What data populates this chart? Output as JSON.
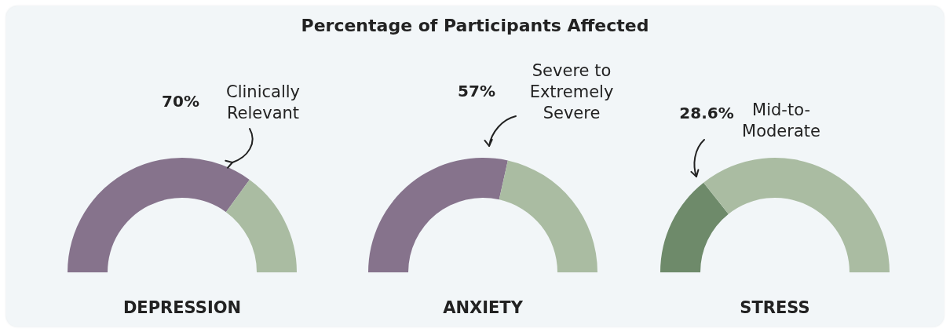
{
  "chart_data": [
    {
      "type": "donut",
      "categories": [
        "Clinically Relevant",
        null
      ],
      "values": [
        70,
        30
      ],
      "colors": [
        "#86738c",
        "#aabca2"
      ],
      "value_labels": [
        "70%",
        null
      ],
      "xlabel": "DEPRESSION"
    },
    {
      "type": "donut",
      "title": "Percentage of Participants Affected",
      "categories": [
        "Severe to Extremely Severe",
        null
      ],
      "values": [
        57,
        43
      ],
      "colors": [
        "#86738c",
        "#aabca2"
      ],
      "value_labels": [
        "57%",
        null
      ],
      "xlabel": "ANXIETY"
    },
    {
      "type": "donut",
      "categories": [
        "Mid-to-Moderate",
        null
      ],
      "values": [
        28.6,
        71.4
      ],
      "colors": [
        "#6e8a6a",
        "#aabca2"
      ],
      "value_labels": [
        "28.6%",
        null
      ],
      "xlabel": "STRESS"
    }
  ]
}
